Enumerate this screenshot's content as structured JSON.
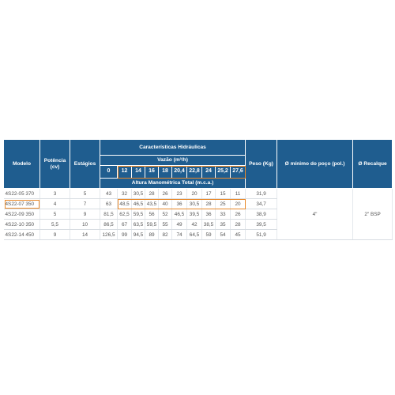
{
  "headers": {
    "modelo": "Modelo",
    "potencia": "Potência\n(cv)",
    "estagios": "Estágios",
    "caracteristicas": "Características Hidráulicas",
    "vazao": "Vazão (m³/h)",
    "altura": "Altura Manométrica Total (m.c.a.)",
    "peso": "Peso (Kg)",
    "poco": "Ø mínimo do poço (pol.)",
    "recalque": "Ø Recalque"
  },
  "flows": [
    "0",
    "12",
    "14",
    "16",
    "18",
    "20,4",
    "22,8",
    "24",
    "25,2",
    "27,6"
  ],
  "rows": [
    {
      "modelo": "4S22-05 370",
      "potencia": "3",
      "estagios": "5",
      "alturas": [
        "43",
        "32",
        "30,5",
        "28",
        "26",
        "23",
        "20",
        "17",
        "15",
        "11"
      ],
      "peso": "31,9"
    },
    {
      "modelo": "4S22-07 350",
      "potencia": "4",
      "estagios": "7",
      "alturas": [
        "63",
        "48,5",
        "46,5",
        "43,5",
        "40",
        "36",
        "30,5",
        "28",
        "25",
        "20"
      ],
      "peso": "34,7"
    },
    {
      "modelo": "4S22-09 350",
      "potencia": "5",
      "estagios": "9",
      "alturas": [
        "81,5",
        "62,5",
        "59,5",
        "56",
        "52",
        "46,5",
        "39,5",
        "36",
        "33",
        "26"
      ],
      "peso": "38,9"
    },
    {
      "modelo": "4S22-10 350",
      "potencia": "5,5",
      "estagios": "10",
      "alturas": [
        "86,5",
        "67",
        "63,5",
        "59,5",
        "55",
        "49",
        "42",
        "38,5",
        "35",
        "28"
      ],
      "peso": "39,5"
    },
    {
      "modelo": "4S22-14 450",
      "potencia": "9",
      "estagios": "14",
      "alturas": [
        "126,5",
        "99",
        "94,5",
        "89",
        "82",
        "74",
        "64,5",
        "59",
        "54",
        "45"
      ],
      "peso": "51,9"
    }
  ],
  "poco_value": "4\"",
  "recalque_value": "2\" BSP",
  "colors": {
    "header": "#1f5d8f",
    "highlight": "#e8892b"
  }
}
